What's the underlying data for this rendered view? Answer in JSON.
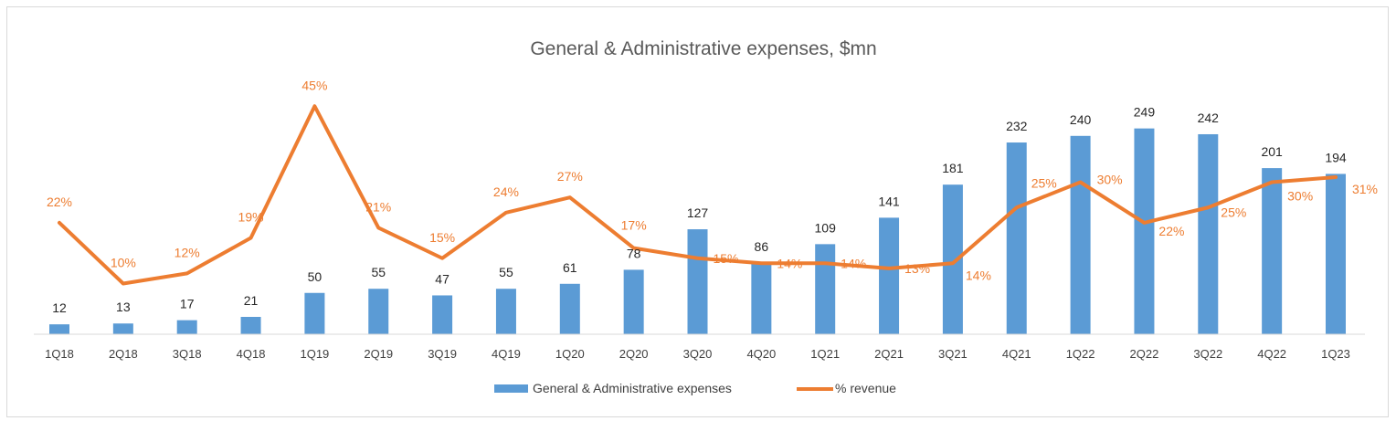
{
  "chart_data": {
    "type": "bar",
    "title": "General & Administrative expenses, $mn",
    "categories": [
      "1Q18",
      "2Q18",
      "3Q18",
      "4Q18",
      "1Q19",
      "2Q19",
      "3Q19",
      "4Q19",
      "1Q20",
      "2Q20",
      "3Q20",
      "4Q20",
      "1Q21",
      "2Q21",
      "3Q21",
      "4Q21",
      "1Q22",
      "2Q22",
      "3Q22",
      "4Q22",
      "1Q23"
    ],
    "series": [
      {
        "name": "General & Administrative expenses",
        "type": "bar",
        "color": "#5b9bd5",
        "values": [
          12,
          13,
          17,
          21,
          50,
          55,
          47,
          55,
          61,
          78,
          127,
          86,
          109,
          141,
          181,
          232,
          240,
          249,
          242,
          201,
          194
        ],
        "labels": [
          "12",
          "13",
          "17",
          "21",
          "50",
          "55",
          "47",
          "55",
          "61",
          "78",
          "127",
          "86",
          "109",
          "141",
          "181",
          "232",
          "240",
          "249",
          "242",
          "201",
          "194"
        ]
      },
      {
        "name": "% revenue",
        "type": "line",
        "color": "#ed7d31",
        "values": [
          22,
          10,
          12,
          19,
          45,
          21,
          15,
          24,
          27,
          17,
          15,
          14,
          14,
          13,
          14,
          25,
          30,
          22,
          25,
          30,
          31
        ],
        "labels": [
          "22%",
          "10%",
          "12%",
          "19%",
          "45%",
          "21%",
          "15%",
          "24%",
          "27%",
          "17%",
          "15%",
          "14%",
          "14%",
          "13%",
          "14%",
          "25%",
          "30%",
          "22%",
          "25%",
          "30%",
          "31%"
        ]
      }
    ],
    "bar_axis": {
      "min": 0,
      "max": 260
    },
    "line_axis": {
      "min": 0,
      "max": 50
    },
    "grid": false,
    "legend_position": "bottom"
  }
}
